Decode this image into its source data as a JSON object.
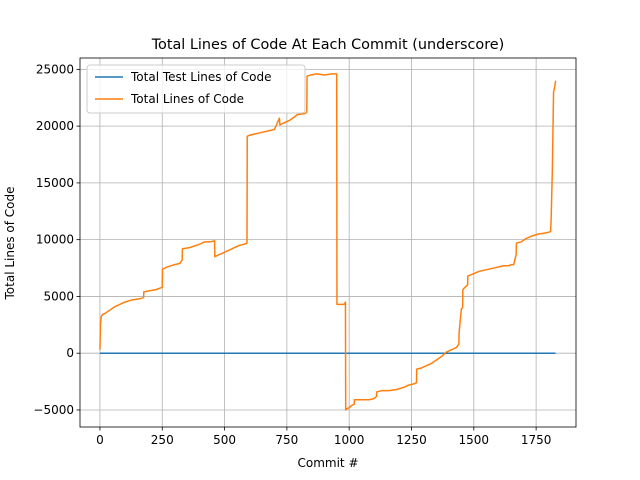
{
  "chart_data": {
    "type": "line",
    "title": "Total Lines of Code At Each Commit (underscore)",
    "xlabel": "Commit #",
    "ylabel": "Total Lines of Code",
    "xlim": [
      -80,
      1910
    ],
    "ylim": [
      -6500,
      26000
    ],
    "xticks": [
      0,
      250,
      500,
      750,
      1000,
      1250,
      1500,
      1750
    ],
    "yticks": [
      -5000,
      0,
      5000,
      10000,
      15000,
      20000,
      25000
    ],
    "grid": true,
    "legend_position": "top-left",
    "series": [
      {
        "name": "Total Test Lines of Code",
        "color": "#1f77b4",
        "x": [
          0,
          1828
        ],
        "y": [
          0,
          0
        ]
      },
      {
        "name": "Total Lines of Code",
        "color": "#ff7f0e",
        "x": [
          0,
          2,
          5,
          10,
          20,
          40,
          60,
          80,
          100,
          130,
          160,
          175,
          176,
          200,
          225,
          250,
          251,
          270,
          300,
          320,
          330,
          331,
          360,
          400,
          420,
          440,
          460,
          461,
          480,
          500,
          520,
          540,
          560,
          580,
          590,
          591,
          600,
          640,
          680,
          700,
          720,
          722,
          730,
          760,
          780,
          790,
          820,
          830,
          831,
          845,
          870,
          900,
          930,
          950,
          951,
          980,
          985,
          986,
          990,
          1000,
          1010,
          1020,
          1021,
          1050,
          1080,
          1100,
          1110,
          1111,
          1130,
          1160,
          1190,
          1220,
          1240,
          1260,
          1270,
          1271,
          1290,
          1310,
          1330,
          1350,
          1370,
          1390,
          1410,
          1430,
          1440,
          1441,
          1450,
          1455,
          1456,
          1460,
          1475,
          1476,
          1500,
          1520,
          1540,
          1560,
          1580,
          1600,
          1620,
          1640,
          1650,
          1660,
          1670,
          1671,
          1690,
          1710,
          1730,
          1760,
          1790,
          1808,
          1810,
          1815,
          1820,
          1822,
          1825,
          1828
        ],
        "y": [
          300,
          2500,
          3200,
          3400,
          3500,
          3800,
          4100,
          4300,
          4500,
          4700,
          4800,
          4900,
          5400,
          5500,
          5600,
          5800,
          7400,
          7600,
          7800,
          7900,
          8200,
          9200,
          9300,
          9600,
          9800,
          9800,
          9900,
          8500,
          8700,
          8900,
          9100,
          9300,
          9500,
          9600,
          9700,
          19100,
          19200,
          19400,
          19600,
          19700,
          20700,
          20100,
          20200,
          20500,
          20800,
          21000,
          21100,
          21200,
          24400,
          24500,
          24600,
          24500,
          24600,
          24600,
          4300,
          4300,
          4500,
          -5000,
          -4900,
          -4800,
          -4600,
          -4500,
          -4100,
          -4100,
          -4100,
          -4000,
          -3800,
          -3400,
          -3300,
          -3300,
          -3200,
          -3000,
          -2800,
          -2700,
          -2600,
          -1400,
          -1300,
          -1100,
          -900,
          -600,
          -300,
          100,
          300,
          500,
          800,
          1800,
          3900,
          4000,
          5600,
          5700,
          6000,
          6800,
          7000,
          7200,
          7300,
          7400,
          7500,
          7600,
          7700,
          7700,
          7800,
          7800,
          8700,
          9700,
          9800,
          10100,
          10300,
          10500,
          10600,
          10700,
          11700,
          16000,
          23000,
          23200,
          23500,
          24000
        ]
      }
    ]
  }
}
